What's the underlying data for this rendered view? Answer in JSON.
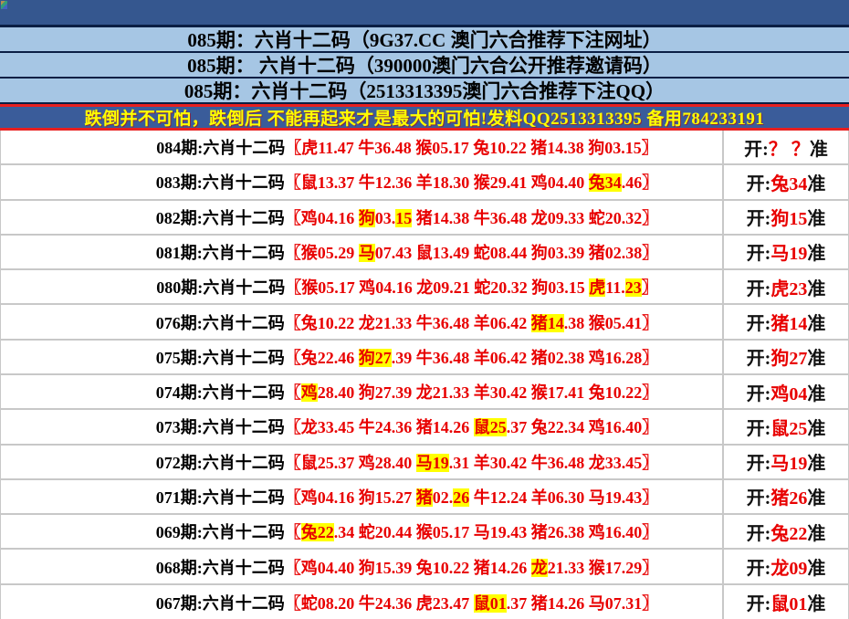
{
  "header": {
    "rows": [
      {
        "text": "085期：六肖十二码（9G37.CC 澳门六合推荐下注网址）"
      },
      {
        "text": "085期： 六肖十二码（390000澳门六合公开推荐邀请码）"
      },
      {
        "text": "085期：六肖十二码（2513313395澳门六合推荐下注QQ）"
      }
    ]
  },
  "banner": {
    "text": "跌倒并不可怕，跌倒后 不能再起来才是最大的可怕!发料QQ2513313395 备用784233191"
  },
  "colors": {
    "topbar_blue": "#35578f",
    "header_light_blue": "#a6c6e4",
    "dark_separator": "#0b1f44",
    "banner_blue": "#3a5c9a",
    "banner_text_yellow": "#ffff00",
    "red_line": "#e81f1f",
    "code_red": "#e80000",
    "highlight_yellow": "#ffff00",
    "row_separator_gray": "#c8c8c8"
  },
  "table": {
    "bracket_open": "〖",
    "bracket_close": "〗",
    "open_prefix": "开:",
    "open_suffix": "准",
    "rows": [
      {
        "period": "084期:六肖十二码",
        "open": "？ ？ ",
        "codes": [
          [
            [
              "虎",
              0
            ],
            [
              "11.47",
              0
            ]
          ],
          [
            [
              "牛",
              0
            ],
            [
              "36.48",
              0
            ]
          ],
          [
            [
              "猴",
              0
            ],
            [
              "05.17",
              0
            ]
          ],
          [
            [
              "兔",
              0
            ],
            [
              "10.22",
              0
            ]
          ],
          [
            [
              "猪",
              0
            ],
            [
              "14.38",
              0
            ]
          ],
          [
            [
              "狗",
              0
            ],
            [
              "03.15",
              0
            ]
          ]
        ]
      },
      {
        "period": "083期:六肖十二码",
        "open": "兔34",
        "codes": [
          [
            [
              "鼠",
              0
            ],
            [
              "13.37",
              0
            ]
          ],
          [
            [
              "牛",
              0
            ],
            [
              "12.36",
              0
            ]
          ],
          [
            [
              "羊",
              0
            ],
            [
              "18.30",
              0
            ]
          ],
          [
            [
              "猴",
              0
            ],
            [
              "29.41",
              0
            ]
          ],
          [
            [
              "鸡",
              0
            ],
            [
              "04.40",
              0
            ]
          ],
          [
            [
              "兔",
              1
            ],
            [
              "34",
              1
            ],
            [
              ".46",
              0
            ]
          ]
        ]
      },
      {
        "period": "082期:六肖十二码",
        "open": "狗15",
        "codes": [
          [
            [
              "鸡",
              0
            ],
            [
              "04.16",
              0
            ]
          ],
          [
            [
              "狗",
              1
            ],
            [
              "03.",
              0
            ],
            [
              "15",
              1
            ]
          ],
          [
            [
              "猪",
              0
            ],
            [
              "14.38",
              0
            ]
          ],
          [
            [
              "牛",
              0
            ],
            [
              "36.48",
              0
            ]
          ],
          [
            [
              "龙",
              0
            ],
            [
              "09.33",
              0
            ]
          ],
          [
            [
              "蛇",
              0
            ],
            [
              "20.32",
              0
            ]
          ]
        ]
      },
      {
        "period": "081期:六肖十二码",
        "open": "马19",
        "codes": [
          [
            [
              "猴",
              0
            ],
            [
              "05.29",
              0
            ]
          ],
          [
            [
              "马",
              1
            ],
            [
              "07.43",
              0
            ]
          ],
          [
            [
              "鼠",
              0
            ],
            [
              "13.49",
              0
            ]
          ],
          [
            [
              "蛇",
              0
            ],
            [
              "08.44",
              0
            ]
          ],
          [
            [
              "狗",
              0
            ],
            [
              "03.39",
              0
            ]
          ],
          [
            [
              "猪",
              0
            ],
            [
              "02.38",
              0
            ]
          ]
        ]
      },
      {
        "period": "080期:六肖十二码",
        "open": "虎23",
        "codes": [
          [
            [
              "猴",
              0
            ],
            [
              "05.17",
              0
            ]
          ],
          [
            [
              "鸡",
              0
            ],
            [
              "04.16",
              0
            ]
          ],
          [
            [
              "龙",
              0
            ],
            [
              "09.21",
              0
            ]
          ],
          [
            [
              "蛇",
              0
            ],
            [
              "20.32",
              0
            ]
          ],
          [
            [
              "狗",
              0
            ],
            [
              "03.15",
              0
            ]
          ],
          [
            [
              "虎",
              1
            ],
            [
              "11.",
              0
            ],
            [
              "23",
              1
            ]
          ]
        ]
      },
      {
        "period": "076期:六肖十二码",
        "open": "猪14",
        "codes": [
          [
            [
              "兔",
              0
            ],
            [
              "10.22",
              0
            ]
          ],
          [
            [
              "龙",
              0
            ],
            [
              "21.33",
              0
            ]
          ],
          [
            [
              "牛",
              0
            ],
            [
              "36.48",
              0
            ]
          ],
          [
            [
              "羊",
              0
            ],
            [
              "06.42",
              0
            ]
          ],
          [
            [
              "猪",
              1
            ],
            [
              "14",
              1
            ],
            [
              ".38",
              0
            ]
          ],
          [
            [
              "猴",
              0
            ],
            [
              "05.41",
              0
            ]
          ]
        ]
      },
      {
        "period": "075期:六肖十二码",
        "open": "狗27",
        "codes": [
          [
            [
              "兔",
              0
            ],
            [
              "22.46",
              0
            ]
          ],
          [
            [
              "狗",
              1
            ],
            [
              "27",
              1
            ],
            [
              ".39",
              0
            ]
          ],
          [
            [
              "牛",
              0
            ],
            [
              "36.48",
              0
            ]
          ],
          [
            [
              "羊",
              0
            ],
            [
              "06.42",
              0
            ]
          ],
          [
            [
              "猪",
              0
            ],
            [
              "02.38",
              0
            ]
          ],
          [
            [
              "鸡",
              0
            ],
            [
              "16.28",
              0
            ]
          ]
        ]
      },
      {
        "period": "074期:六肖十二码",
        "open": "鸡04",
        "codes": [
          [
            [
              "鸡",
              1
            ],
            [
              "28.40",
              0
            ]
          ],
          [
            [
              "狗",
              0
            ],
            [
              "27.39",
              0
            ]
          ],
          [
            [
              "龙",
              0
            ],
            [
              "21.33",
              0
            ]
          ],
          [
            [
              "羊",
              0
            ],
            [
              "30.42",
              0
            ]
          ],
          [
            [
              "猴",
              0
            ],
            [
              "17.41",
              0
            ]
          ],
          [
            [
              "兔",
              0
            ],
            [
              "10.22",
              0
            ]
          ]
        ]
      },
      {
        "period": "073期:六肖十二码",
        "open": "鼠25",
        "codes": [
          [
            [
              "龙",
              0
            ],
            [
              "33.45",
              0
            ]
          ],
          [
            [
              "牛",
              0
            ],
            [
              "24.36",
              0
            ]
          ],
          [
            [
              "猪",
              0
            ],
            [
              "14.26",
              0
            ]
          ],
          [
            [
              "鼠",
              1
            ],
            [
              "25",
              1
            ],
            [
              ".37",
              0
            ]
          ],
          [
            [
              "兔",
              0
            ],
            [
              "22.34",
              0
            ]
          ],
          [
            [
              "鸡",
              0
            ],
            [
              "16.40",
              0
            ]
          ]
        ]
      },
      {
        "period": "072期:六肖十二码",
        "open": "马19",
        "codes": [
          [
            [
              "鼠",
              0
            ],
            [
              "25.37",
              0
            ]
          ],
          [
            [
              "鸡",
              0
            ],
            [
              "28.40",
              0
            ]
          ],
          [
            [
              "马",
              1
            ],
            [
              "19",
              1
            ],
            [
              ".31",
              0
            ]
          ],
          [
            [
              "羊",
              0
            ],
            [
              "30.42",
              0
            ]
          ],
          [
            [
              "牛",
              0
            ],
            [
              "36.48",
              0
            ]
          ],
          [
            [
              "龙",
              0
            ],
            [
              "33.45",
              0
            ]
          ]
        ]
      },
      {
        "period": "071期:六肖十二码",
        "open": "猪26",
        "codes": [
          [
            [
              "鸡",
              0
            ],
            [
              "04.16",
              0
            ]
          ],
          [
            [
              "狗",
              0
            ],
            [
              "15.27",
              0
            ]
          ],
          [
            [
              "猪",
              1
            ],
            [
              "02.",
              0
            ],
            [
              "26",
              1
            ]
          ],
          [
            [
              "牛",
              0
            ],
            [
              "12.24",
              0
            ]
          ],
          [
            [
              "羊",
              0
            ],
            [
              "06.30",
              0
            ]
          ],
          [
            [
              "马",
              0
            ],
            [
              "19.43",
              0
            ]
          ]
        ]
      },
      {
        "period": "069期:六肖十二码",
        "open": "兔22",
        "codes": [
          [
            [
              "兔",
              1
            ],
            [
              "22",
              1
            ],
            [
              ".34",
              0
            ]
          ],
          [
            [
              "蛇",
              0
            ],
            [
              "20.44",
              0
            ]
          ],
          [
            [
              "猴",
              0
            ],
            [
              "05.17",
              0
            ]
          ],
          [
            [
              "马",
              0
            ],
            [
              "19.43",
              0
            ]
          ],
          [
            [
              "猪",
              0
            ],
            [
              "26.38",
              0
            ]
          ],
          [
            [
              "鸡",
              0
            ],
            [
              "16.40",
              0
            ]
          ]
        ]
      },
      {
        "period": "068期:六肖十二码",
        "open": "龙09",
        "codes": [
          [
            [
              "鸡",
              0
            ],
            [
              "04.40",
              0
            ]
          ],
          [
            [
              "狗",
              0
            ],
            [
              "15.39",
              0
            ]
          ],
          [
            [
              "兔",
              0
            ],
            [
              "10.22",
              0
            ]
          ],
          [
            [
              "猪",
              0
            ],
            [
              "14.26",
              0
            ]
          ],
          [
            [
              "龙",
              1
            ],
            [
              "21.33",
              0
            ]
          ],
          [
            [
              "猴",
              0
            ],
            [
              "17.29",
              0
            ]
          ]
        ]
      },
      {
        "period": "067期:六肖十二码",
        "open": "鼠01",
        "codes": [
          [
            [
              "蛇",
              0
            ],
            [
              "08.20",
              0
            ]
          ],
          [
            [
              "牛",
              0
            ],
            [
              "24.36",
              0
            ]
          ],
          [
            [
              "虎",
              0
            ],
            [
              "23.47",
              0
            ]
          ],
          [
            [
              "鼠",
              1
            ],
            [
              "01",
              1
            ],
            [
              ".37",
              0
            ]
          ],
          [
            [
              "猪",
              0
            ],
            [
              "14.26",
              0
            ]
          ],
          [
            [
              "马",
              0
            ],
            [
              "07.31",
              0
            ]
          ]
        ]
      }
    ]
  }
}
